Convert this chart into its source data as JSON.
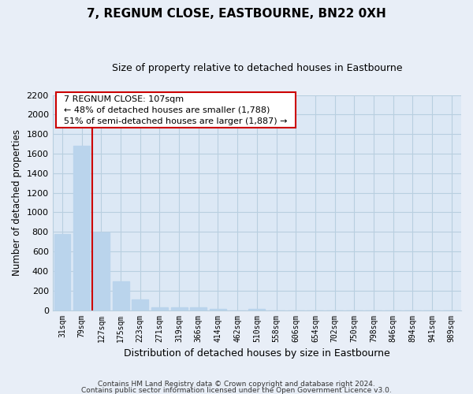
{
  "title": "7, REGNUM CLOSE, EASTBOURNE, BN22 0XH",
  "subtitle": "Size of property relative to detached houses in Eastbourne",
  "xlabel": "Distribution of detached houses by size in Eastbourne",
  "ylabel": "Number of detached properties",
  "categories": [
    "31sqm",
    "79sqm",
    "127sqm",
    "175sqm",
    "223sqm",
    "271sqm",
    "319sqm",
    "366sqm",
    "414sqm",
    "462sqm",
    "510sqm",
    "558sqm",
    "606sqm",
    "654sqm",
    "702sqm",
    "750sqm",
    "798sqm",
    "846sqm",
    "894sqm",
    "941sqm",
    "989sqm"
  ],
  "values": [
    780,
    1680,
    795,
    295,
    110,
    32,
    28,
    28,
    15,
    0,
    14,
    0,
    0,
    0,
    0,
    0,
    0,
    0,
    0,
    0,
    0
  ],
  "bar_color": "#bad4ec",
  "redline_index": 1.55,
  "annotation_title": "7 REGNUM CLOSE: 107sqm",
  "annotation_line1": "← 48% of detached houses are smaller (1,788)",
  "annotation_line2": "51% of semi-detached houses are larger (1,887) →",
  "ylim": [
    0,
    2200
  ],
  "yticks": [
    0,
    200,
    400,
    600,
    800,
    1000,
    1200,
    1400,
    1600,
    1800,
    2000,
    2200
  ],
  "footer_line1": "Contains HM Land Registry data © Crown copyright and database right 2024.",
  "footer_line2": "Contains public sector information licensed under the Open Government Licence v3.0.",
  "bg_color": "#e8eef7",
  "plot_bg_color": "#dce8f5",
  "grid_color": "#b8cfe0",
  "annotation_box_color": "#ffffff",
  "annotation_box_edge": "#cc0000",
  "red_line_color": "#cc0000"
}
